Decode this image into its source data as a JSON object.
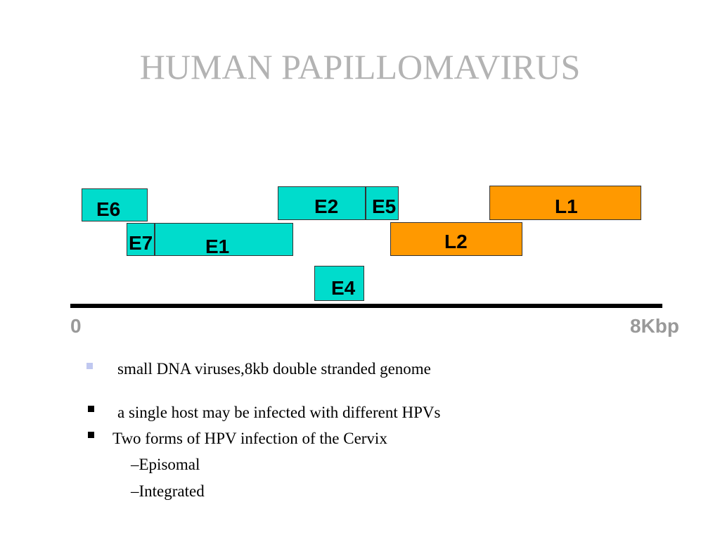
{
  "title": "HUMAN PAPILLOMAVIRUS",
  "genome_map": {
    "colors": {
      "early_gene": "#00dccc",
      "late_gene": "#ff9900",
      "axis": "#000000"
    },
    "genes": {
      "e6": "E6",
      "e7": "E7",
      "e1": "E1",
      "e2": "E2",
      "e5": "E5",
      "e4": "E4",
      "l2": "L2",
      "l1": "L1"
    },
    "axis_start": "0",
    "axis_end": "8Kbp"
  },
  "bullets": [
    {
      "text": "small DNA viruses,8kb double stranded genome",
      "marker_color": "#c0c8f0"
    },
    {
      "text": "a single host may be infected with different HPVs",
      "marker_color": "#000000"
    },
    {
      "text": "Two forms of HPV infection of the Cervix",
      "marker_color": "#000000"
    }
  ],
  "sub_bullets": [
    "–Episomal",
    "–Integrated"
  ]
}
